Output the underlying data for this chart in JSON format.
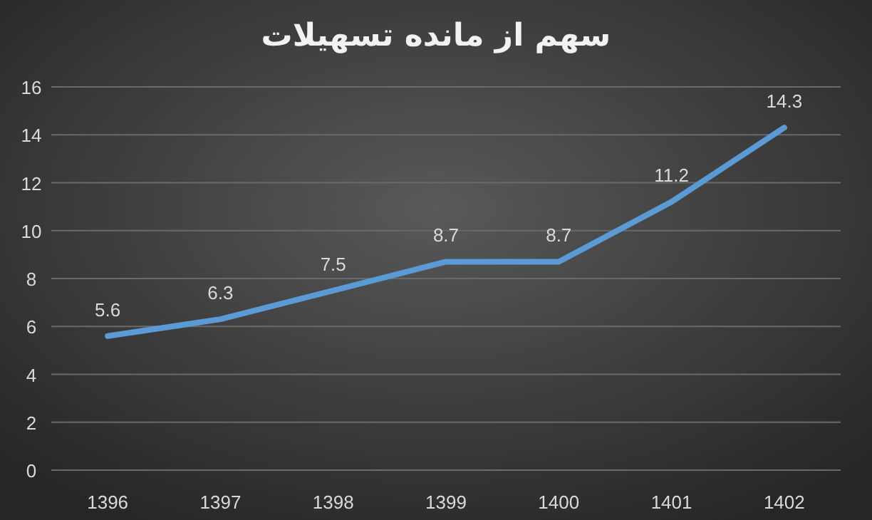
{
  "chart_data": {
    "type": "line",
    "title": "سهم از مانده تسهیلات",
    "categories": [
      "1396",
      "1397",
      "1398",
      "1399",
      "1400",
      "1401",
      "1402"
    ],
    "series": [
      {
        "color": "#5b9bd5",
        "values": [
          5.6,
          6.3,
          7.5,
          8.7,
          8.7,
          11.2,
          14.3
        ]
      }
    ],
    "ylim": [
      0,
      16
    ],
    "yticks": [
      0,
      2,
      4,
      6,
      8,
      10,
      12,
      14,
      16
    ],
    "grid": "y",
    "data_labels": true,
    "marker": "none",
    "line_style": "solid"
  }
}
